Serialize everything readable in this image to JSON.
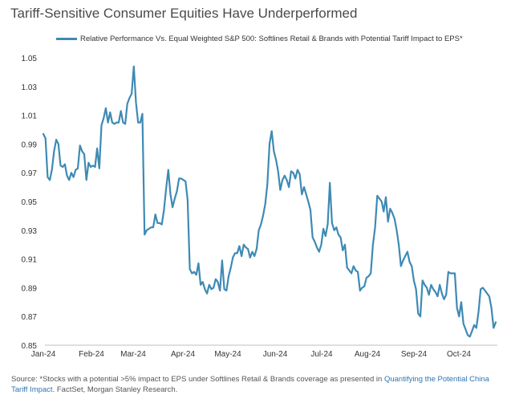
{
  "title": "Tariff-Sensitive Consumer Equities Have Underperformed",
  "source": {
    "prefix": "Source: *Stocks with a potential >5% impact to EPS under Softlines Retail & Brands coverage as presented in ",
    "link": "Quantifying the Potential China Tariff Impact",
    "suffix": ". FactSet, Morgan Stanley Research."
  },
  "chart_data": {
    "type": "line",
    "title": "Tariff-Sensitive Consumer Equities Have Underperformed",
    "xlabel": "",
    "ylabel": "",
    "ylim": [
      0.85,
      1.05
    ],
    "yticks": [
      "1.05",
      "1.03",
      "1.01",
      "0.99",
      "0.97",
      "0.95",
      "0.93",
      "0.91",
      "0.89",
      "0.87",
      "0.85"
    ],
    "xticks": [
      "Jan-24",
      "Feb-24",
      "Mar-24",
      "Apr-24",
      "May-24",
      "Jun-24",
      "Jul-24",
      "Aug-24",
      "Sep-24",
      "Oct-24"
    ],
    "grid": false,
    "legend": "top",
    "color": "#3e8ab4",
    "series": [
      {
        "name": "Relative Performance Vs. Equal Weighted S&P 500: Softlines Retail & Brands with Potential Tariff Impact to EPS*",
        "values": [
          0.997,
          0.994,
          0.967,
          0.965,
          0.972,
          0.985,
          0.993,
          0.99,
          0.975,
          0.974,
          0.976,
          0.968,
          0.965,
          0.97,
          0.967,
          0.972,
          0.973,
          0.989,
          0.985,
          0.983,
          0.965,
          0.977,
          0.974,
          0.975,
          0.974,
          0.987,
          0.973,
          1.003,
          1.008,
          1.015,
          1.005,
          1.012,
          1.005,
          1.004,
          1.005,
          1.005,
          1.013,
          1.005,
          1.004,
          1.018,
          1.022,
          1.025,
          1.044,
          1.019,
          1.005,
          1.005,
          1.011,
          0.927,
          0.93,
          0.931,
          0.932,
          0.932,
          0.941,
          0.935,
          0.935,
          0.934,
          0.944,
          0.959,
          0.972,
          0.955,
          0.946,
          0.952,
          0.957,
          0.966,
          0.966,
          0.965,
          0.964,
          0.951,
          0.903,
          0.9,
          0.901,
          0.899,
          0.907,
          0.892,
          0.894,
          0.889,
          0.886,
          0.892,
          0.889,
          0.89,
          0.896,
          0.894,
          0.888,
          0.909,
          0.889,
          0.888,
          0.898,
          0.904,
          0.911,
          0.914,
          0.914,
          0.919,
          0.912,
          0.92,
          0.918,
          0.917,
          0.911,
          0.915,
          0.912,
          0.917,
          0.93,
          0.934,
          0.94,
          0.948,
          0.962,
          0.99,
          0.999,
          0.985,
          0.979,
          0.971,
          0.958,
          0.965,
          0.968,
          0.965,
          0.96,
          0.971,
          0.97,
          0.966,
          0.972,
          0.969,
          0.955,
          0.96,
          0.955,
          0.95,
          0.944,
          0.925,
          0.922,
          0.918,
          0.915,
          0.92,
          0.931,
          0.926,
          0.934,
          0.963,
          0.935,
          0.93,
          0.932,
          0.927,
          0.925,
          0.916,
          0.92,
          0.904,
          0.902,
          0.9,
          0.905,
          0.902,
          0.901,
          0.888,
          0.89,
          0.891,
          0.897,
          0.898,
          0.9,
          0.92,
          0.932,
          0.954,
          0.952,
          0.95,
          0.943,
          0.953,
          0.936,
          0.945,
          0.942,
          0.938,
          0.93,
          0.92,
          0.905,
          0.909,
          0.912,
          0.915,
          0.908,
          0.905,
          0.895,
          0.889,
          0.872,
          0.87,
          0.895,
          0.892,
          0.89,
          0.885,
          0.892,
          0.889,
          0.887,
          0.884,
          0.892,
          0.886,
          0.882,
          0.885,
          0.901,
          0.9,
          0.9,
          0.9,
          0.876,
          0.87,
          0.88,
          0.865,
          0.861,
          0.857,
          0.856,
          0.86,
          0.864,
          0.862,
          0.873,
          0.889,
          0.89,
          0.888,
          0.886,
          0.884,
          0.876,
          0.862,
          0.866
        ]
      }
    ]
  }
}
